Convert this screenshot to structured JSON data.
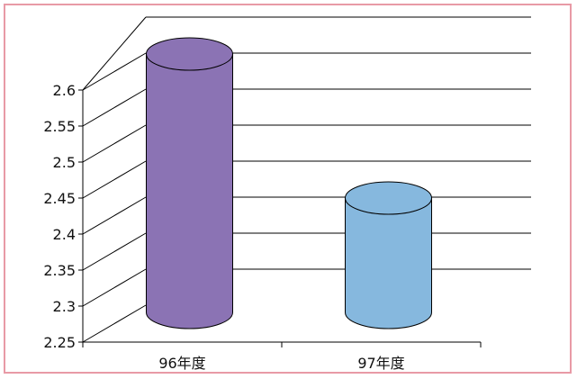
{
  "chart_data": {
    "type": "bar",
    "subtype": "3d-cylinder",
    "title": "",
    "xlabel": "",
    "ylabel": "",
    "categories": [
      "96年度",
      "97年度"
    ],
    "values": [
      2.6,
      2.4
    ],
    "ylim": [
      2.25,
      2.6
    ],
    "yticks": [
      "2.25",
      "2.3",
      "2.35",
      "2.4",
      "2.45",
      "2.5",
      "2.55",
      "2.6"
    ],
    "grid": true,
    "legend": "none",
    "colors": {
      "series": [
        "#8b73b4",
        "#86b8de"
      ],
      "border": "#e89aa6",
      "axis": "#000000"
    }
  }
}
